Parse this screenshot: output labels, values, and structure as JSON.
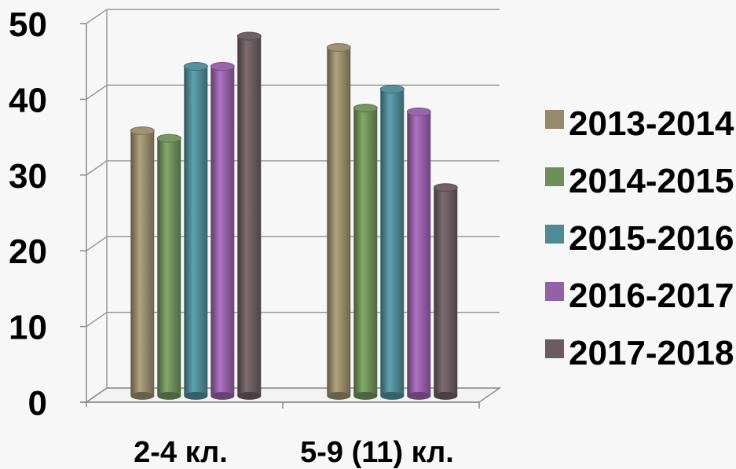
{
  "chart_data": {
    "type": "bar",
    "categories": [
      "2-4 кл.",
      "5-9 (11) кл."
    ],
    "series": [
      {
        "name": "2013-2014",
        "values": [
          35,
          46
        ],
        "color": "#978a6c"
      },
      {
        "name": "2014-2015",
        "values": [
          34,
          38
        ],
        "color": "#6e8f5a"
      },
      {
        "name": "2015-2016",
        "values": [
          43.5,
          40.5
        ],
        "color": "#4f8a96"
      },
      {
        "name": "2016-2017",
        "values": [
          43.5,
          37.5
        ],
        "color": "#9460a6"
      },
      {
        "name": "2017-2018",
        "values": [
          47.5,
          27.5
        ],
        "color": "#6a5c60"
      }
    ],
    "yticks": [
      "0",
      "10",
      "20",
      "30",
      "40",
      "50"
    ],
    "ylim": [
      0,
      50
    ],
    "grid": true,
    "legend": "right",
    "title": "",
    "xlabel": "",
    "ylabel": ""
  }
}
